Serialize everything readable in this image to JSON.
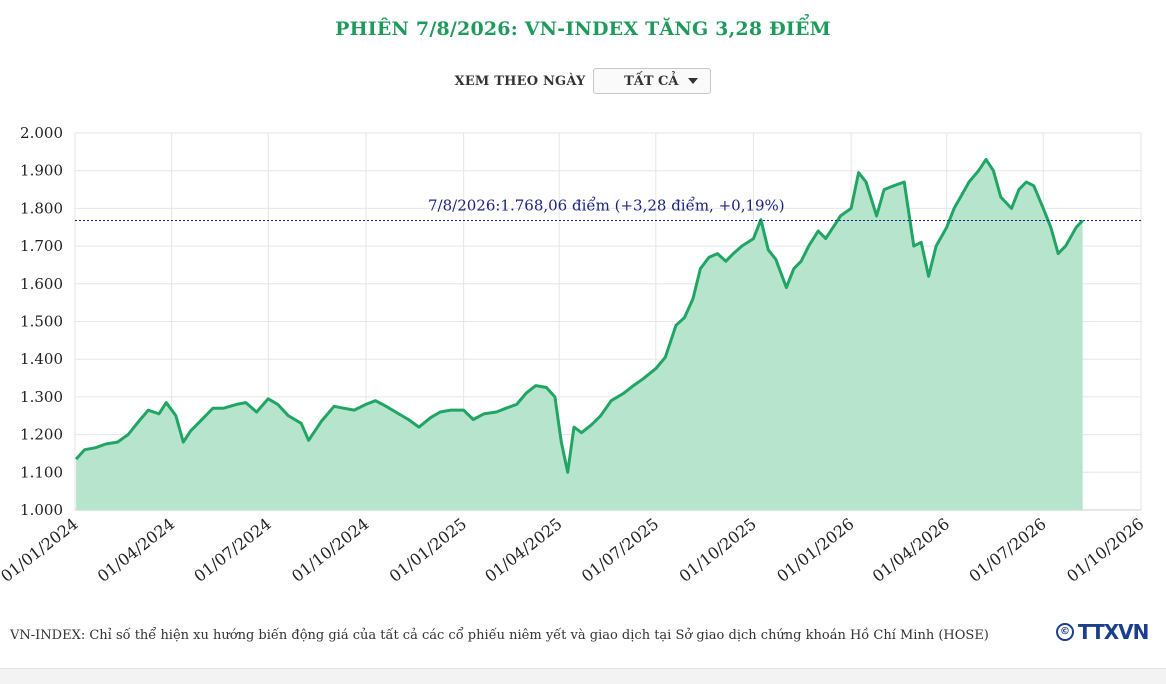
{
  "header": {
    "title": "PHIÊN 7/8/2026: VN-INDEX TĂNG 3,28 ĐIỂM"
  },
  "filter": {
    "label": "XEM THEO NGÀY",
    "selected": "TẤT CẢ"
  },
  "footer": {
    "note": "VN-INDEX: Chỉ số thể hiện xu hướng biến động giá của tất cả các cổ phiếu niêm yết và giao dịch tại Sở giao dịch chứng khoán Hồ Chí Minh (HOSE)",
    "logo_text": "TTXVN",
    "logo_symbol": "©"
  },
  "colors": {
    "title": "#1e9a5c",
    "line": "#20a565",
    "fill": "#b7e4cc",
    "grid": "#e6e6e6",
    "annotation": "#1a237e"
  },
  "chart_data": {
    "type": "area",
    "title": "",
    "xlabel": "",
    "ylabel": "",
    "ylim": [
      1000,
      2000
    ],
    "xlim": [
      "2024-01-01",
      "2026-10-01"
    ],
    "grid": true,
    "legend": "none",
    "y_ticks": [
      "1.000",
      "1.100",
      "1.200",
      "1.300",
      "1.400",
      "1.500",
      "1.600",
      "1.700",
      "1.800",
      "1.900",
      "2.000"
    ],
    "x_ticks": [
      "01/01/2024",
      "01/04/2024",
      "01/07/2024",
      "01/10/2024",
      "01/01/2025",
      "01/04/2025",
      "01/07/2025",
      "01/10/2025",
      "01/01/2026",
      "01/04/2026",
      "01/07/2026",
      "01/10/2026"
    ],
    "annotation": {
      "text": "7/8/2026:1.768,06 điểm (+3,28 điểm, +0,19%)",
      "value": 1768.06
    },
    "series": [
      {
        "x": [
          "2024-01-02",
          "2024-01-10",
          "2024-01-20",
          "2024-01-30",
          "2024-02-10",
          "2024-02-20",
          "2024-03-01",
          "2024-03-10",
          "2024-03-20",
          "2024-03-27",
          "2024-04-05",
          "2024-04-12",
          "2024-04-19",
          "2024-04-26",
          "2024-05-10",
          "2024-05-20",
          "2024-06-01",
          "2024-06-10",
          "2024-06-20",
          "2024-07-01",
          "2024-07-10",
          "2024-07-20",
          "2024-08-01",
          "2024-08-08",
          "2024-08-20",
          "2024-09-01",
          "2024-09-10",
          "2024-09-20",
          "2024-10-01",
          "2024-10-10",
          "2024-10-20",
          "2024-11-01",
          "2024-11-10",
          "2024-11-20",
          "2024-12-01",
          "2024-12-10",
          "2024-12-20",
          "2025-01-01",
          "2025-01-10",
          "2025-01-20",
          "2025-02-01",
          "2025-02-10",
          "2025-02-20",
          "2025-03-01",
          "2025-03-10",
          "2025-03-20",
          "2025-03-28",
          "2025-04-03",
          "2025-04-09",
          "2025-04-15",
          "2025-04-22",
          "2025-05-01",
          "2025-05-10",
          "2025-05-20",
          "2025-06-01",
          "2025-06-10",
          "2025-06-20",
          "2025-07-01",
          "2025-07-10",
          "2025-07-20",
          "2025-07-28",
          "2025-08-05",
          "2025-08-12",
          "2025-08-20",
          "2025-08-28",
          "2025-09-05",
          "2025-09-12",
          "2025-09-20",
          "2025-10-01",
          "2025-10-08",
          "2025-10-15",
          "2025-10-22",
          "2025-11-01",
          "2025-11-08",
          "2025-11-15",
          "2025-11-22",
          "2025-12-01",
          "2025-12-08",
          "2025-12-15",
          "2025-12-22",
          "2026-01-01",
          "2026-01-08",
          "2026-01-15",
          "2026-01-25",
          "2026-02-01",
          "2026-02-10",
          "2026-02-20",
          "2026-03-01",
          "2026-03-08",
          "2026-03-15",
          "2026-03-22",
          "2026-04-01",
          "2026-04-08",
          "2026-04-15",
          "2026-04-22",
          "2026-05-01",
          "2026-05-08",
          "2026-05-15",
          "2026-05-22",
          "2026-06-01",
          "2026-06-08",
          "2026-06-15",
          "2026-06-22",
          "2026-07-01",
          "2026-07-08",
          "2026-07-15",
          "2026-07-22",
          "2026-08-01",
          "2026-08-07"
        ],
        "values": [
          1135,
          1160,
          1165,
          1175,
          1180,
          1200,
          1235,
          1265,
          1255,
          1285,
          1250,
          1180,
          1210,
          1230,
          1270,
          1270,
          1280,
          1285,
          1260,
          1295,
          1280,
          1250,
          1230,
          1185,
          1235,
          1275,
          1270,
          1265,
          1280,
          1290,
          1275,
          1255,
          1240,
          1220,
          1245,
          1260,
          1265,
          1265,
          1240,
          1255,
          1260,
          1270,
          1280,
          1310,
          1330,
          1325,
          1300,
          1180,
          1100,
          1220,
          1205,
          1225,
          1250,
          1290,
          1310,
          1330,
          1350,
          1375,
          1405,
          1490,
          1510,
          1560,
          1640,
          1670,
          1680,
          1660,
          1680,
          1700,
          1720,
          1770,
          1690,
          1665,
          1590,
          1640,
          1660,
          1700,
          1740,
          1720,
          1750,
          1780,
          1800,
          1895,
          1870,
          1780,
          1850,
          1860,
          1870,
          1700,
          1710,
          1620,
          1700,
          1750,
          1800,
          1835,
          1870,
          1900,
          1930,
          1900,
          1830,
          1800,
          1850,
          1870,
          1860,
          1800,
          1750,
          1680,
          1700,
          1750,
          1768
        ]
      }
    ]
  }
}
